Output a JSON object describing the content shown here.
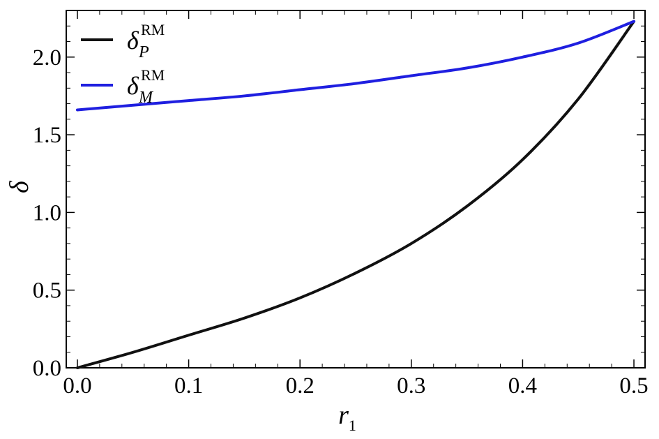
{
  "chart_data": {
    "type": "line",
    "title": "",
    "xlabel": "r",
    "xlabel_sub": "1",
    "ylabel": "δ",
    "xlim": [
      -0.01,
      0.51
    ],
    "ylim": [
      0,
      2.3
    ],
    "xticks": [
      0.0,
      0.1,
      0.2,
      0.3,
      0.4,
      0.5
    ],
    "xtick_labels": [
      "0.0",
      "0.1",
      "0.2",
      "0.3",
      "0.4",
      "0.5"
    ],
    "yticks": [
      0.0,
      0.5,
      1.0,
      1.5,
      2.0
    ],
    "ytick_labels": [
      "0.0",
      "0.5",
      "1.0",
      "1.5",
      "2.0"
    ],
    "grid": false,
    "legend_position": "top-left",
    "series": [
      {
        "key": "P",
        "name": "δ",
        "name_sup": "RM",
        "name_sub": "P",
        "color": "#111111",
        "x": [
          0.0,
          0.05,
          0.1,
          0.15,
          0.2,
          0.25,
          0.3,
          0.35,
          0.4,
          0.45,
          0.5
        ],
        "y": [
          0.0,
          0.1,
          0.21,
          0.32,
          0.45,
          0.61,
          0.8,
          1.04,
          1.34,
          1.73,
          2.23
        ]
      },
      {
        "key": "M",
        "name": "δ",
        "name_sup": "RM",
        "name_sub": "M",
        "color": "#1f1fe0",
        "x": [
          0.0,
          0.05,
          0.1,
          0.15,
          0.2,
          0.25,
          0.3,
          0.35,
          0.4,
          0.45,
          0.5
        ],
        "y": [
          1.66,
          1.69,
          1.72,
          1.75,
          1.79,
          1.83,
          1.88,
          1.93,
          2.0,
          2.09,
          2.23
        ]
      }
    ]
  }
}
